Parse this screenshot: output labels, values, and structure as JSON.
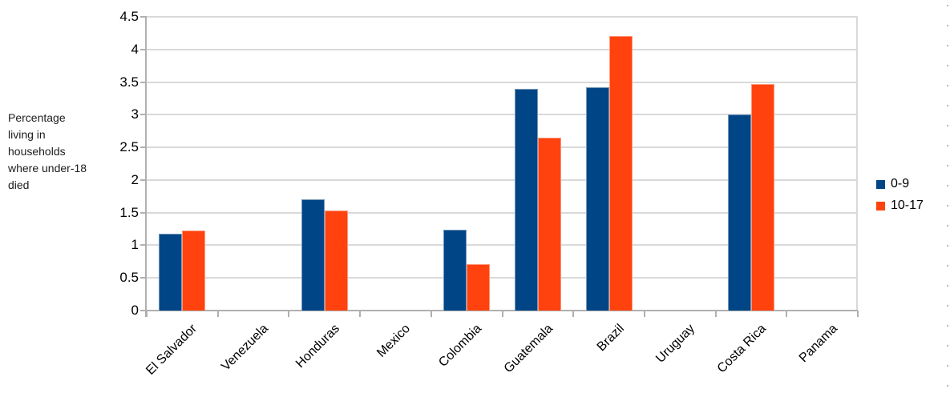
{
  "chart_data": {
    "type": "bar",
    "title": "",
    "y_axis_title": "Percentage\nliving in\nhouseholds\nwhere under-18\ndied",
    "categories": [
      "El Salvador",
      "Venezuela",
      "Honduras",
      "Mexico",
      "Colombia",
      "Guatemala",
      "Brazil",
      "Uruguay",
      "Costa Rica",
      "Panama"
    ],
    "series": [
      {
        "name": "0-9",
        "color": "#004586",
        "values": [
          1.18,
          0,
          1.7,
          0,
          1.24,
          3.4,
          3.42,
          0,
          3.0,
          0
        ]
      },
      {
        "name": "10-17",
        "color": "#FF420E",
        "values": [
          1.23,
          0,
          1.53,
          0,
          0.71,
          2.65,
          4.21,
          0,
          3.47,
          0
        ]
      }
    ],
    "ylim": [
      0,
      4.5
    ],
    "yticks": [
      {
        "value": 0,
        "label": "0"
      },
      {
        "value": 0.5,
        "label": "0.5"
      },
      {
        "value": 1,
        "label": "1"
      },
      {
        "value": 1.5,
        "label": "1.5"
      },
      {
        "value": 2,
        "label": "2"
      },
      {
        "value": 2.5,
        "label": "2.5"
      },
      {
        "value": 3,
        "label": "3"
      },
      {
        "value": 3.5,
        "label": "3.5"
      },
      {
        "value": 4,
        "label": "4"
      },
      {
        "value": 4.5,
        "label": "4.5"
      }
    ],
    "grid": "horizontal",
    "legend_position": "right"
  }
}
